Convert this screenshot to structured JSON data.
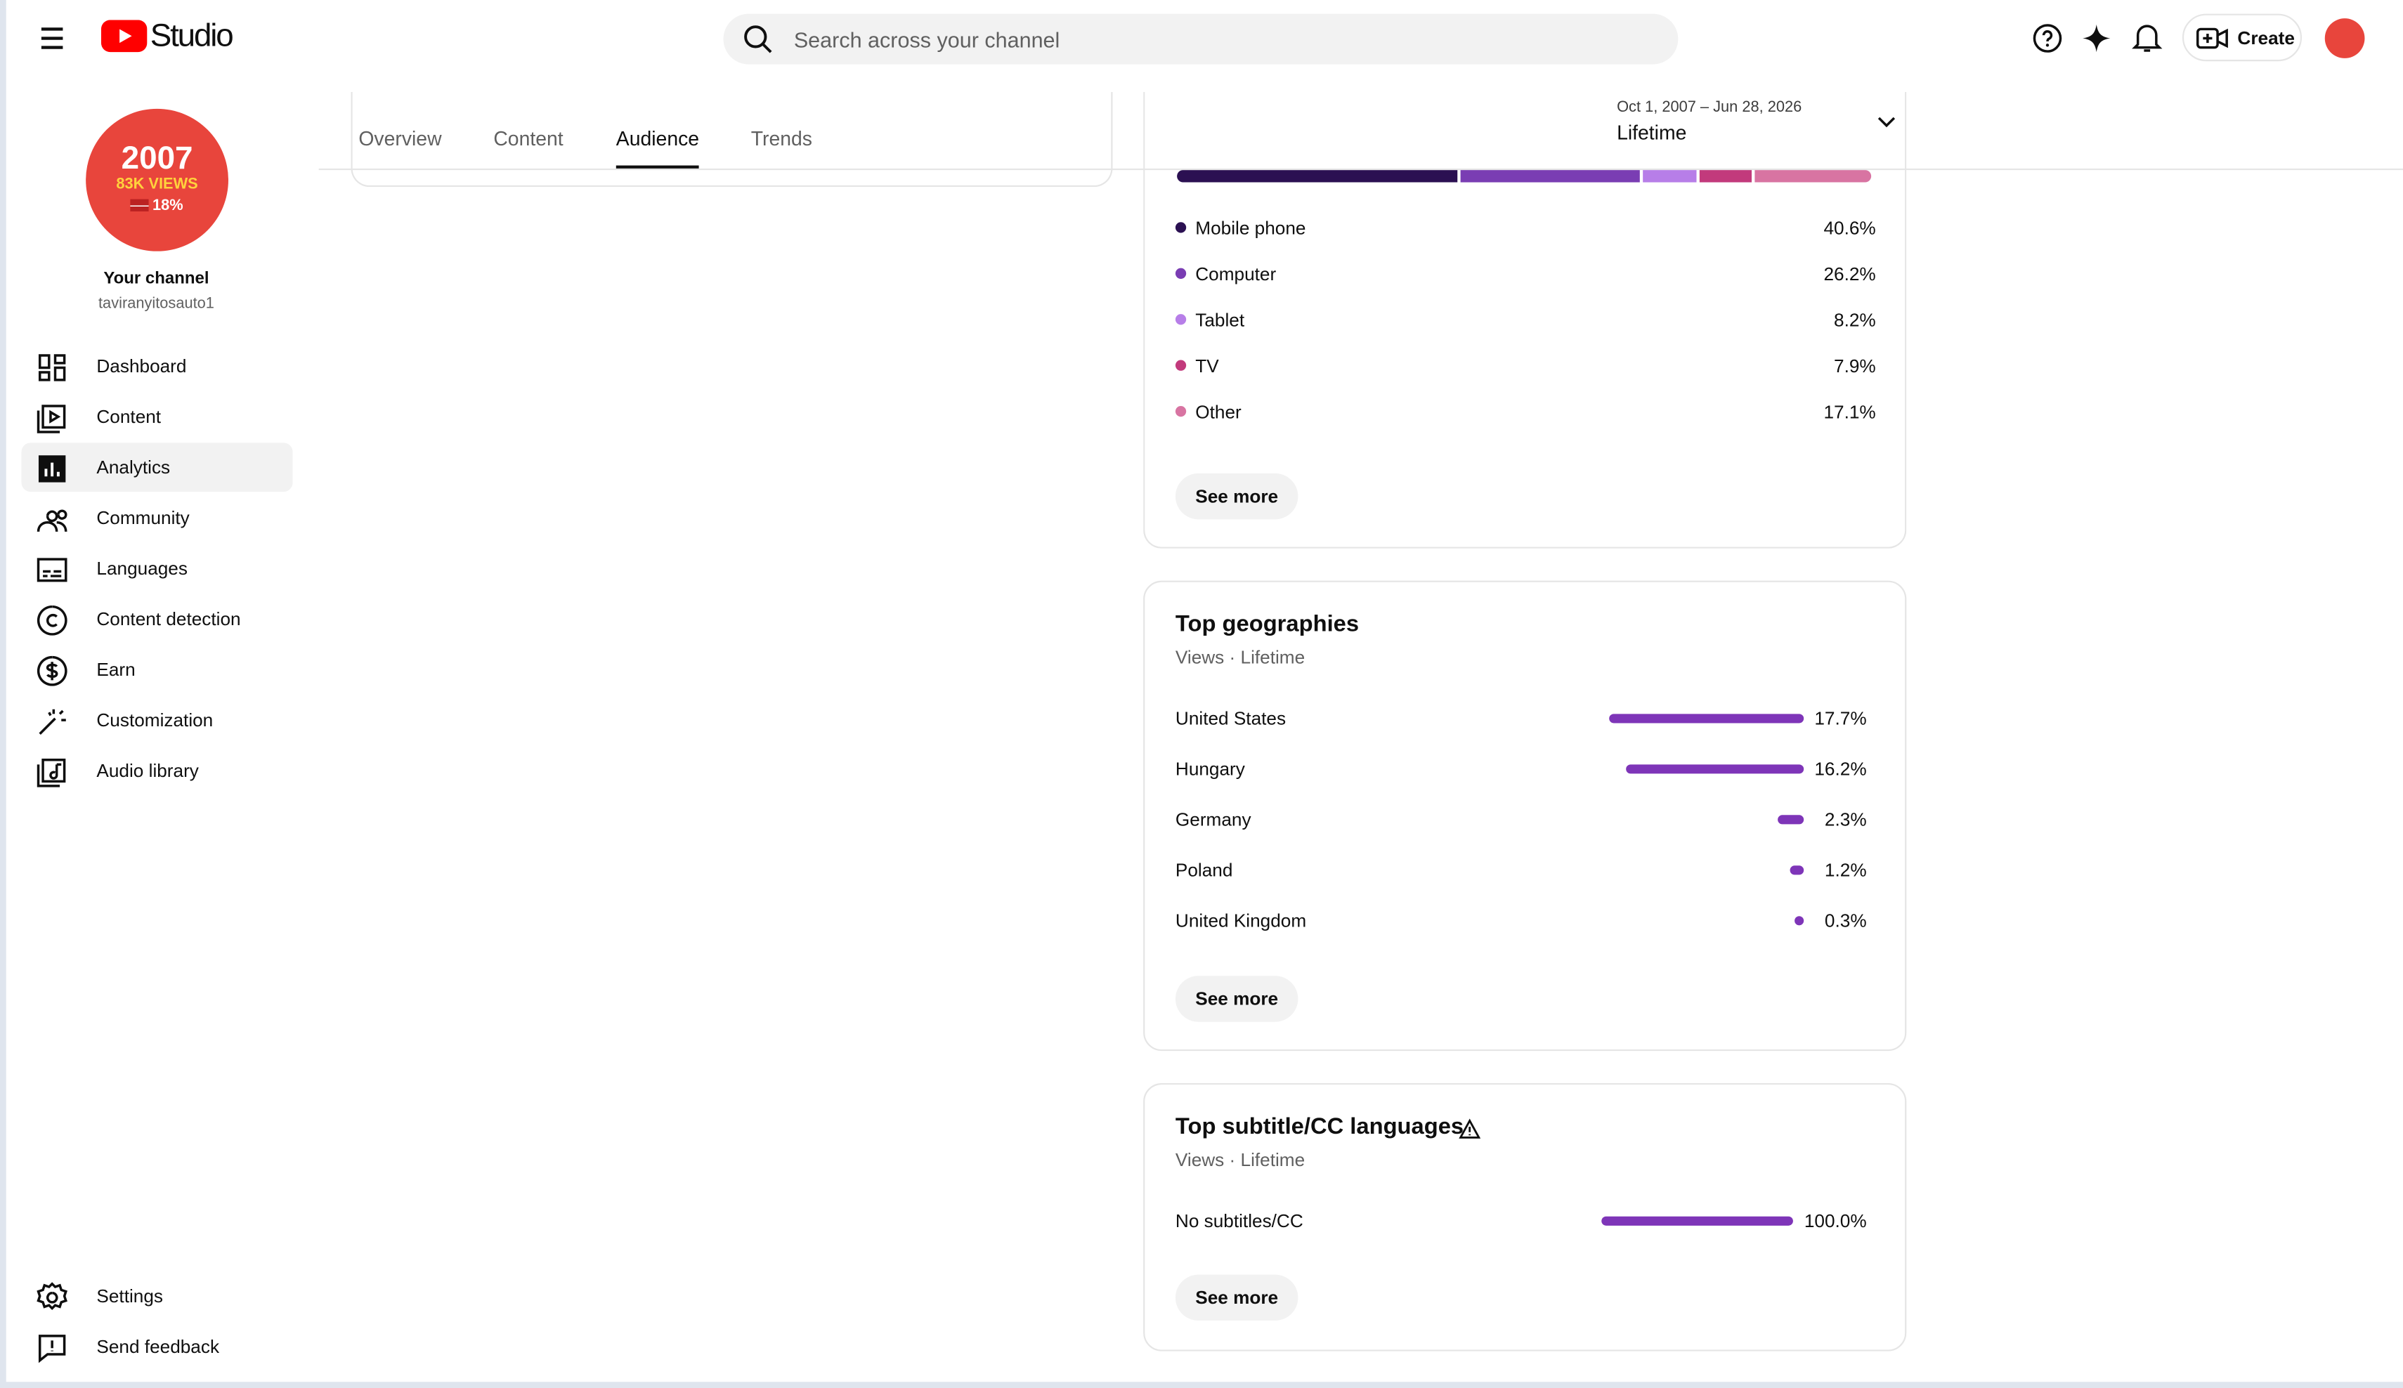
{
  "header": {
    "logo": "Studio",
    "search_placeholder": "Search across your channel",
    "create": "Create"
  },
  "sidebar": {
    "avatar_lines": [
      "2007",
      "83K VIEWS",
      "18%"
    ],
    "channel_label": "Your channel",
    "handle": "taviranyitosauto1",
    "nav": [
      "Dashboard",
      "Content",
      "Analytics",
      "Community",
      "Languages",
      "Content detection",
      "Earn",
      "Customization",
      "Audio library"
    ],
    "footer_nav": [
      "Settings",
      "Send feedback"
    ]
  },
  "tabs": [
    "Overview",
    "Content",
    "Audience",
    "Trends"
  ],
  "date_range": {
    "range": "Oct 1, 2007 – Jun 28, 2026",
    "period": "Lifetime"
  },
  "device_type": {
    "items": [
      {
        "name": "Mobile phone",
        "value": 40.6,
        "label": "40.6%",
        "color": "#2b1052"
      },
      {
        "name": "Computer",
        "value": 26.2,
        "label": "26.2%",
        "color": "#7a3db3"
      },
      {
        "name": "Tablet",
        "value": 8.2,
        "label": "8.2%",
        "color": "#b77ee8"
      },
      {
        "name": "TV",
        "value": 7.9,
        "label": "7.9%",
        "color": "#c23a7c"
      },
      {
        "name": "Other",
        "value": 17.1,
        "label": "17.1%",
        "color": "#d874a2"
      }
    ],
    "see_more": "See more"
  },
  "top_geographies": {
    "title": "Top geographies",
    "subtitle": "Views · Lifetime",
    "color": "#7e35b8",
    "items": [
      {
        "name": "United States",
        "value": 17.7,
        "label": "17.7%"
      },
      {
        "name": "Hungary",
        "value": 16.2,
        "label": "16.2%"
      },
      {
        "name": "Germany",
        "value": 2.3,
        "label": "2.3%"
      },
      {
        "name": "Poland",
        "value": 1.2,
        "label": "1.2%"
      },
      {
        "name": "United Kingdom",
        "value": 0.3,
        "label": "0.3%"
      }
    ],
    "see_more": "See more"
  },
  "top_subtitles": {
    "title": "Top subtitle/CC languages",
    "subtitle": "Views · Lifetime",
    "color": "#7e35b8",
    "items": [
      {
        "name": "No subtitles/CC",
        "value": 100.0,
        "label": "100.0%"
      }
    ],
    "see_more": "See more"
  }
}
